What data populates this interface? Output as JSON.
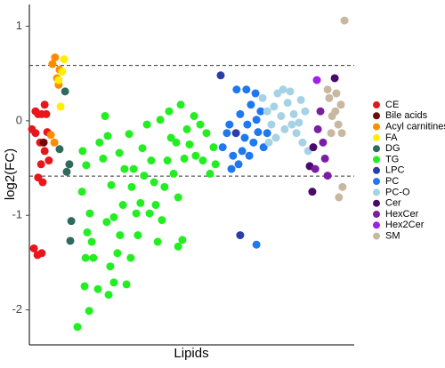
{
  "chart_data": {
    "type": "scatter",
    "x_label": "Lipids",
    "y_label": "log2(FC)",
    "xlim": [
      0,
      100
    ],
    "ylim": [
      -2.37,
      1.23
    ],
    "yticks": [
      -2,
      -1,
      0,
      1
    ],
    "reference_lines": [
      0.585,
      -0.585
    ],
    "series": [
      {
        "name": "CE",
        "color": "#e8161b",
        "x": [
          0.8,
          1.9,
          2.7,
          1.9,
          3.8,
          4.7,
          5.2,
          3.3,
          3.6,
          4.7,
          5.5,
          4.1,
          6.0,
          2.7,
          1.4,
          2.5,
          3.8
        ],
        "values": [
          -0.09,
          -0.13,
          0.07,
          0.1,
          0.07,
          0.17,
          0.07,
          -0.23,
          -0.46,
          -0.32,
          -0.12,
          -0.65,
          -0.42,
          -0.6,
          -1.35,
          -1.42,
          -1.4
        ]
      },
      {
        "name": "Bile acids",
        "color": "#6b0b0b",
        "x": [
          4.4
        ],
        "values": [
          -0.23
        ]
      },
      {
        "name": "Acyl carnitines",
        "color": "#ff8c00",
        "x": [
          7.9,
          9.3,
          7.1,
          8.5,
          6.6,
          7.7,
          9.0
        ],
        "values": [
          0.67,
          0.54,
          0.6,
          0.45,
          -0.15,
          -0.23,
          0.38
        ]
      },
      {
        "name": "FA",
        "color": "#ffee00",
        "x": [
          10.7,
          10.1,
          9.0,
          9.6
        ],
        "values": [
          0.65,
          0.52,
          0.43,
          0.15
        ]
      },
      {
        "name": "DG",
        "color": "#2f6b5c",
        "x": [
          11.0,
          9.3,
          12.3,
          11.5,
          12.6,
          12.9
        ],
        "values": [
          0.31,
          -0.3,
          -0.46,
          -0.54,
          -1.27,
          -1.06
        ]
      },
      {
        "name": "TG",
        "color": "#22ee22",
        "x": [
          14.8,
          17.0,
          17.3,
          16.2,
          17.8,
          19.2,
          18.6,
          19.7,
          17.5,
          16.4,
          21.6,
          23.3,
          24.1,
          22.7,
          25.2,
          26.0,
          24.9,
          26.0,
          27.1,
          27.9,
          28.8,
          29.3,
          27.7,
          30.7,
          32.1,
          31.5,
          32.9,
          33.4,
          31.2,
          34.2,
          35.3,
          34.8,
          36.2,
          37.5,
          38.4,
          37.0,
          38.9,
          39.5,
          40.8,
          41.6,
          42.5,
          40.3,
          43.0,
          43.6,
          44.4,
          45.2,
          45.8,
          46.6,
          47.7,
          48.5,
          49.3,
          50.7,
          51.2,
          52.6,
          53.4,
          54.5,
          55.6,
          56.7,
          57.3,
          47.1,
          45.8,
          21.1,
          18.4,
          23.8,
          29.9,
          24.4
        ],
        "values": [
          -2.18,
          -1.75,
          -1.45,
          -0.75,
          -1.18,
          -1.28,
          -0.98,
          -1.45,
          -0.47,
          -0.32,
          -0.23,
          0.05,
          -0.16,
          -0.4,
          -0.68,
          -1.02,
          -1.54,
          -1.71,
          -1.4,
          -1.21,
          -0.89,
          -0.51,
          -0.34,
          -0.14,
          -0.51,
          -0.7,
          -0.98,
          -1.21,
          -1.45,
          -0.87,
          -0.58,
          -0.29,
          -0.04,
          -0.42,
          -0.65,
          -0.98,
          -0.89,
          -1.28,
          -1.05,
          -0.7,
          -0.42,
          0.01,
          0.1,
          -0.18,
          -0.56,
          -0.23,
          -0.81,
          0.17,
          -0.4,
          -0.09,
          -0.25,
          0.05,
          -0.37,
          -0.04,
          -0.42,
          -0.13,
          -0.56,
          -0.28,
          -0.46,
          -1.26,
          -1.33,
          -1.78,
          -2.01,
          -1.07,
          -1.73,
          -1.84
        ]
      },
      {
        "name": "LPC",
        "color": "#2a3ea8",
        "x": [
          64.9,
          58.9,
          63.6
        ],
        "values": [
          -1.21,
          0.48,
          -0.13
        ]
      },
      {
        "name": "PC",
        "color": "#1e78f0",
        "x": [
          60.8,
          59.5,
          61.6,
          62.7,
          63.8,
          64.9,
          66.3,
          67.1,
          68.2,
          69.0,
          69.9,
          70.4,
          71.2,
          72.1,
          67.7,
          65.5,
          64.4,
          62.2,
          69.6,
          73.2,
          69.9,
          66.8
        ],
        "values": [
          -0.13,
          -0.28,
          -0.04,
          -0.37,
          0.33,
          0.07,
          -0.18,
          -0.04,
          0.17,
          -0.23,
          0.01,
          -0.12,
          0.1,
          -0.28,
          -0.37,
          -0.32,
          -0.46,
          -0.51,
          0.29,
          -0.13,
          -1.31,
          0.33
        ]
      },
      {
        "name": "PC-O",
        "color": "#a6d2e6",
        "x": [
          71.8,
          73.2,
          74.5,
          75.3,
          76.4,
          77.5,
          78.6,
          79.5,
          80.3,
          81.4,
          82.2,
          83.0,
          84.1,
          84.9,
          85.8,
          75.9,
          78.1,
          80.8,
          73.7,
          83.6
        ],
        "values": [
          0.24,
          0.1,
          -0.04,
          0.15,
          0.29,
          0.05,
          -0.09,
          0.19,
          0.31,
          0.07,
          -0.13,
          -0.02,
          -0.23,
          0.1,
          -0.32,
          -0.18,
          0.33,
          -0.04,
          -0.23,
          0.22
        ]
      },
      {
        "name": "Cer",
        "color": "#4a0a6a",
        "x": [
          87.1,
          86.3,
          87.4,
          94.0
        ],
        "values": [
          -0.75,
          -0.48,
          -0.28,
          0.45
        ]
      },
      {
        "name": "HexCer",
        "color": "#7b1fa2",
        "x": [
          89.6,
          88.8,
          90.4,
          88.0,
          91.0,
          91.8
        ],
        "values": [
          0.1,
          -0.09,
          -0.23,
          -0.51,
          -0.4,
          -0.58
        ]
      },
      {
        "name": "Hex2Cer",
        "color": "#a020f0",
        "x": [
          88.5
        ],
        "values": [
          0.43
        ]
      },
      {
        "name": "SM",
        "color": "#c8b8a0",
        "x": [
          97.0,
          92.3,
          93.2,
          94.2,
          95.1,
          95.9,
          92.9,
          94.5,
          96.4,
          95.3,
          91.8,
          96.2
        ],
        "values": [
          1.06,
          0.24,
          0.05,
          0.1,
          -0.04,
          0.17,
          -0.13,
          0.29,
          -0.7,
          -0.81,
          0.33,
          -0.13
        ]
      }
    ]
  }
}
